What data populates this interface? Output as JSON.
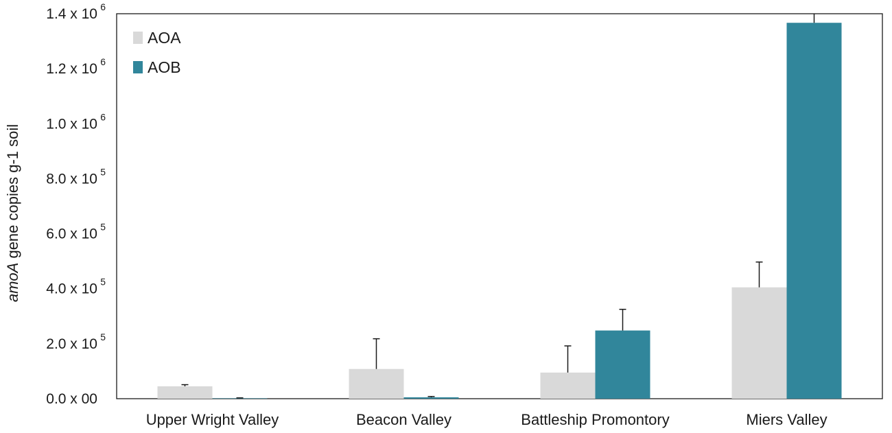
{
  "chart_data": {
    "type": "bar",
    "categories": [
      "Upper Wright Valley",
      "Beacon Valley",
      "Battleship Promontory",
      "Miers Valley"
    ],
    "series": [
      {
        "name": "AOA",
        "values": [
          45000,
          108000,
          95000,
          405000
        ],
        "errors": [
          6000,
          110000,
          97000,
          92000
        ],
        "color": "#d9d9d9"
      },
      {
        "name": "AOB",
        "values": [
          1500,
          5000,
          248000,
          1367000
        ],
        "errors": [
          1500,
          3000,
          77000,
          40000
        ],
        "color": "#31869b"
      }
    ],
    "ylabel_italic": "amoA",
    "ylabel_rest": " gene copies g-1 soil",
    "ylim": [
      0,
      1400000
    ],
    "yticks": [
      {
        "value": 0,
        "mantissa": "0.0",
        "times": " x ",
        "base": "00",
        "exp": ""
      },
      {
        "value": 200000,
        "mantissa": "2.0",
        "times": " x ",
        "base": "10",
        "exp": "5"
      },
      {
        "value": 400000,
        "mantissa": "4.0",
        "times": " x ",
        "base": "10",
        "exp": "5"
      },
      {
        "value": 600000,
        "mantissa": "6.0",
        "times": " x ",
        "base": "10",
        "exp": "5"
      },
      {
        "value": 800000,
        "mantissa": "8.0",
        "times": " x ",
        "base": "10",
        "exp": "5"
      },
      {
        "value": 1000000,
        "mantissa": "1.0",
        "times": " x ",
        "base": "10",
        "exp": "6"
      },
      {
        "value": 1200000,
        "mantissa": "1.2",
        "times": " x ",
        "base": "10",
        "exp": "6"
      },
      {
        "value": 1400000,
        "mantissa": "1.4",
        "times": " x ",
        "base": "10",
        "exp": "6"
      }
    ],
    "legend_position": "top-left",
    "grid": false
  }
}
